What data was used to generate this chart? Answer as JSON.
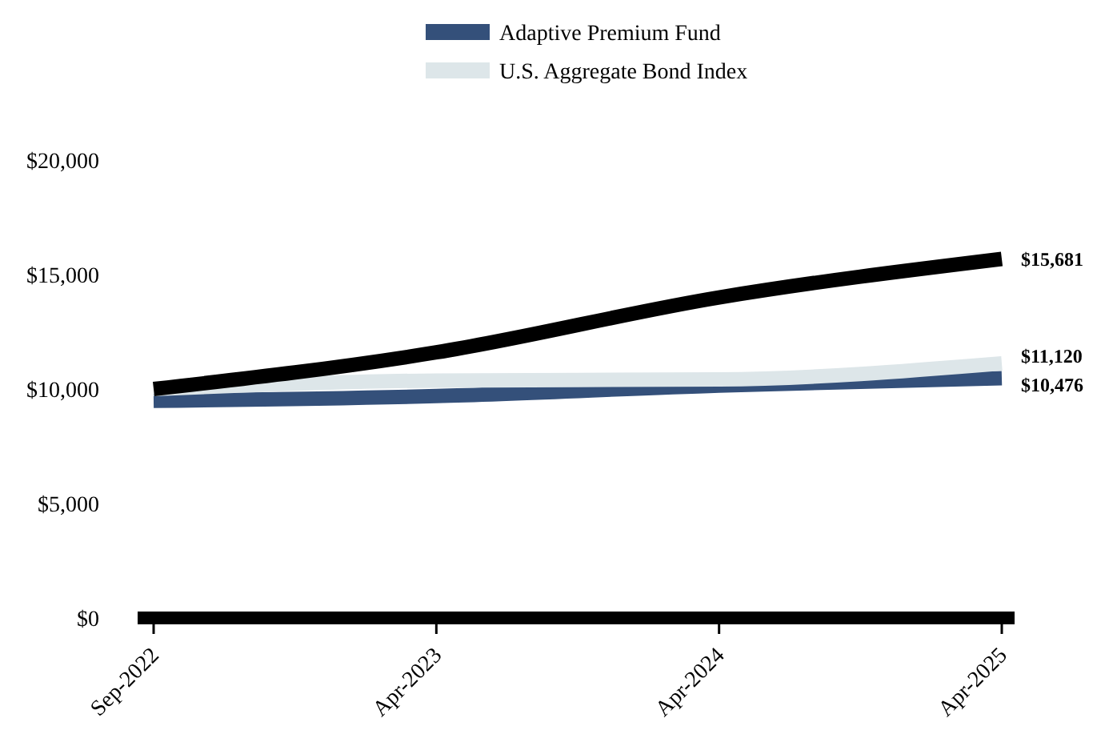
{
  "chart_data": {
    "type": "line",
    "categories": [
      "Sep-2022",
      "Apr-2023",
      "Apr-2024",
      "Apr-2025"
    ],
    "series": [
      {
        "name": "Adaptive Premium Fund",
        "color": "#34507a",
        "values": [
          9480,
          9690,
          10150,
          10476
        ],
        "value_labels": [
          null,
          null,
          null,
          "$10,476"
        ]
      },
      {
        "name": "U.S. Aggregate Bond Index",
        "color": "#dde6e9",
        "values": [
          10000,
          10370,
          10420,
          11120
        ],
        "value_labels": [
          null,
          null,
          null,
          "$11,120"
        ]
      },
      {
        "color": "#000000",
        "values": [
          10000,
          11600,
          14000,
          15681
        ],
        "value_labels": [
          null,
          null,
          null,
          "$15,681"
        ]
      }
    ],
    "ylim": [
      0,
      20000
    ],
    "yticks": [
      {
        "value": 0,
        "label": "$0"
      },
      {
        "value": 5000,
        "label": "$5,000"
      },
      {
        "value": 10000,
        "label": "$10,000"
      },
      {
        "value": 15000,
        "label": "$15,000"
      },
      {
        "value": 20000,
        "label": "$20,000"
      }
    ],
    "legend": "top",
    "grid": false,
    "marker": "none",
    "line_style": "solid"
  }
}
